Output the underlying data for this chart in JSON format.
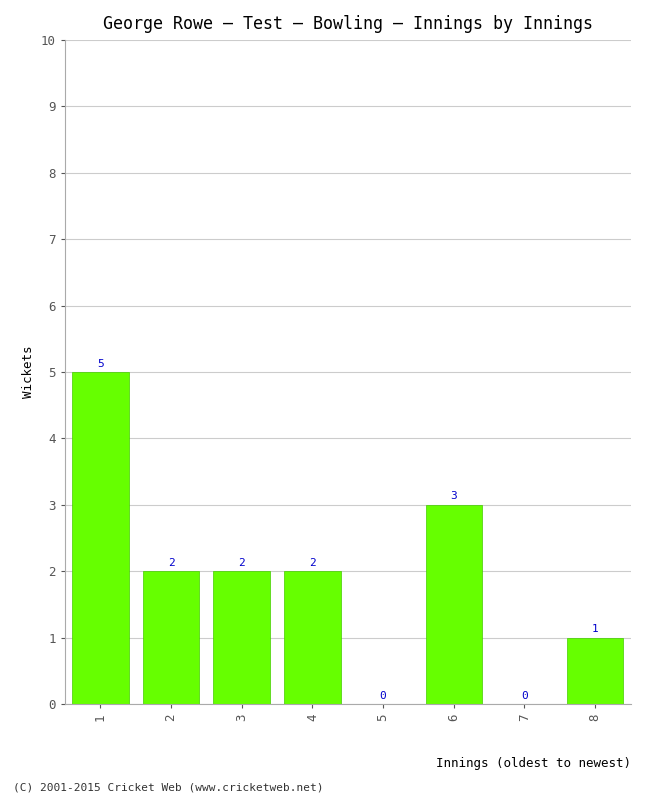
{
  "title": "George Rowe – Test – Bowling – Innings by Innings",
  "xlabel": "Innings (oldest to newest)",
  "ylabel": "Wickets",
  "categories": [
    "1",
    "2",
    "3",
    "4",
    "5",
    "6",
    "7",
    "8"
  ],
  "values": [
    5,
    2,
    2,
    2,
    0,
    3,
    0,
    1
  ],
  "bar_color": "#66ff00",
  "bar_edge_color": "#44cc00",
  "ylim": [
    0,
    10
  ],
  "yticks": [
    0,
    1,
    2,
    3,
    4,
    5,
    6,
    7,
    8,
    9,
    10
  ],
  "label_color": "#0000cc",
  "label_fontsize": 8,
  "title_fontsize": 12,
  "axis_label_fontsize": 9,
  "tick_fontsize": 9,
  "background_color": "#ffffff",
  "grid_color": "#cccccc",
  "footer": "(C) 2001-2015 Cricket Web (www.cricketweb.net)",
  "footer_fontsize": 8
}
